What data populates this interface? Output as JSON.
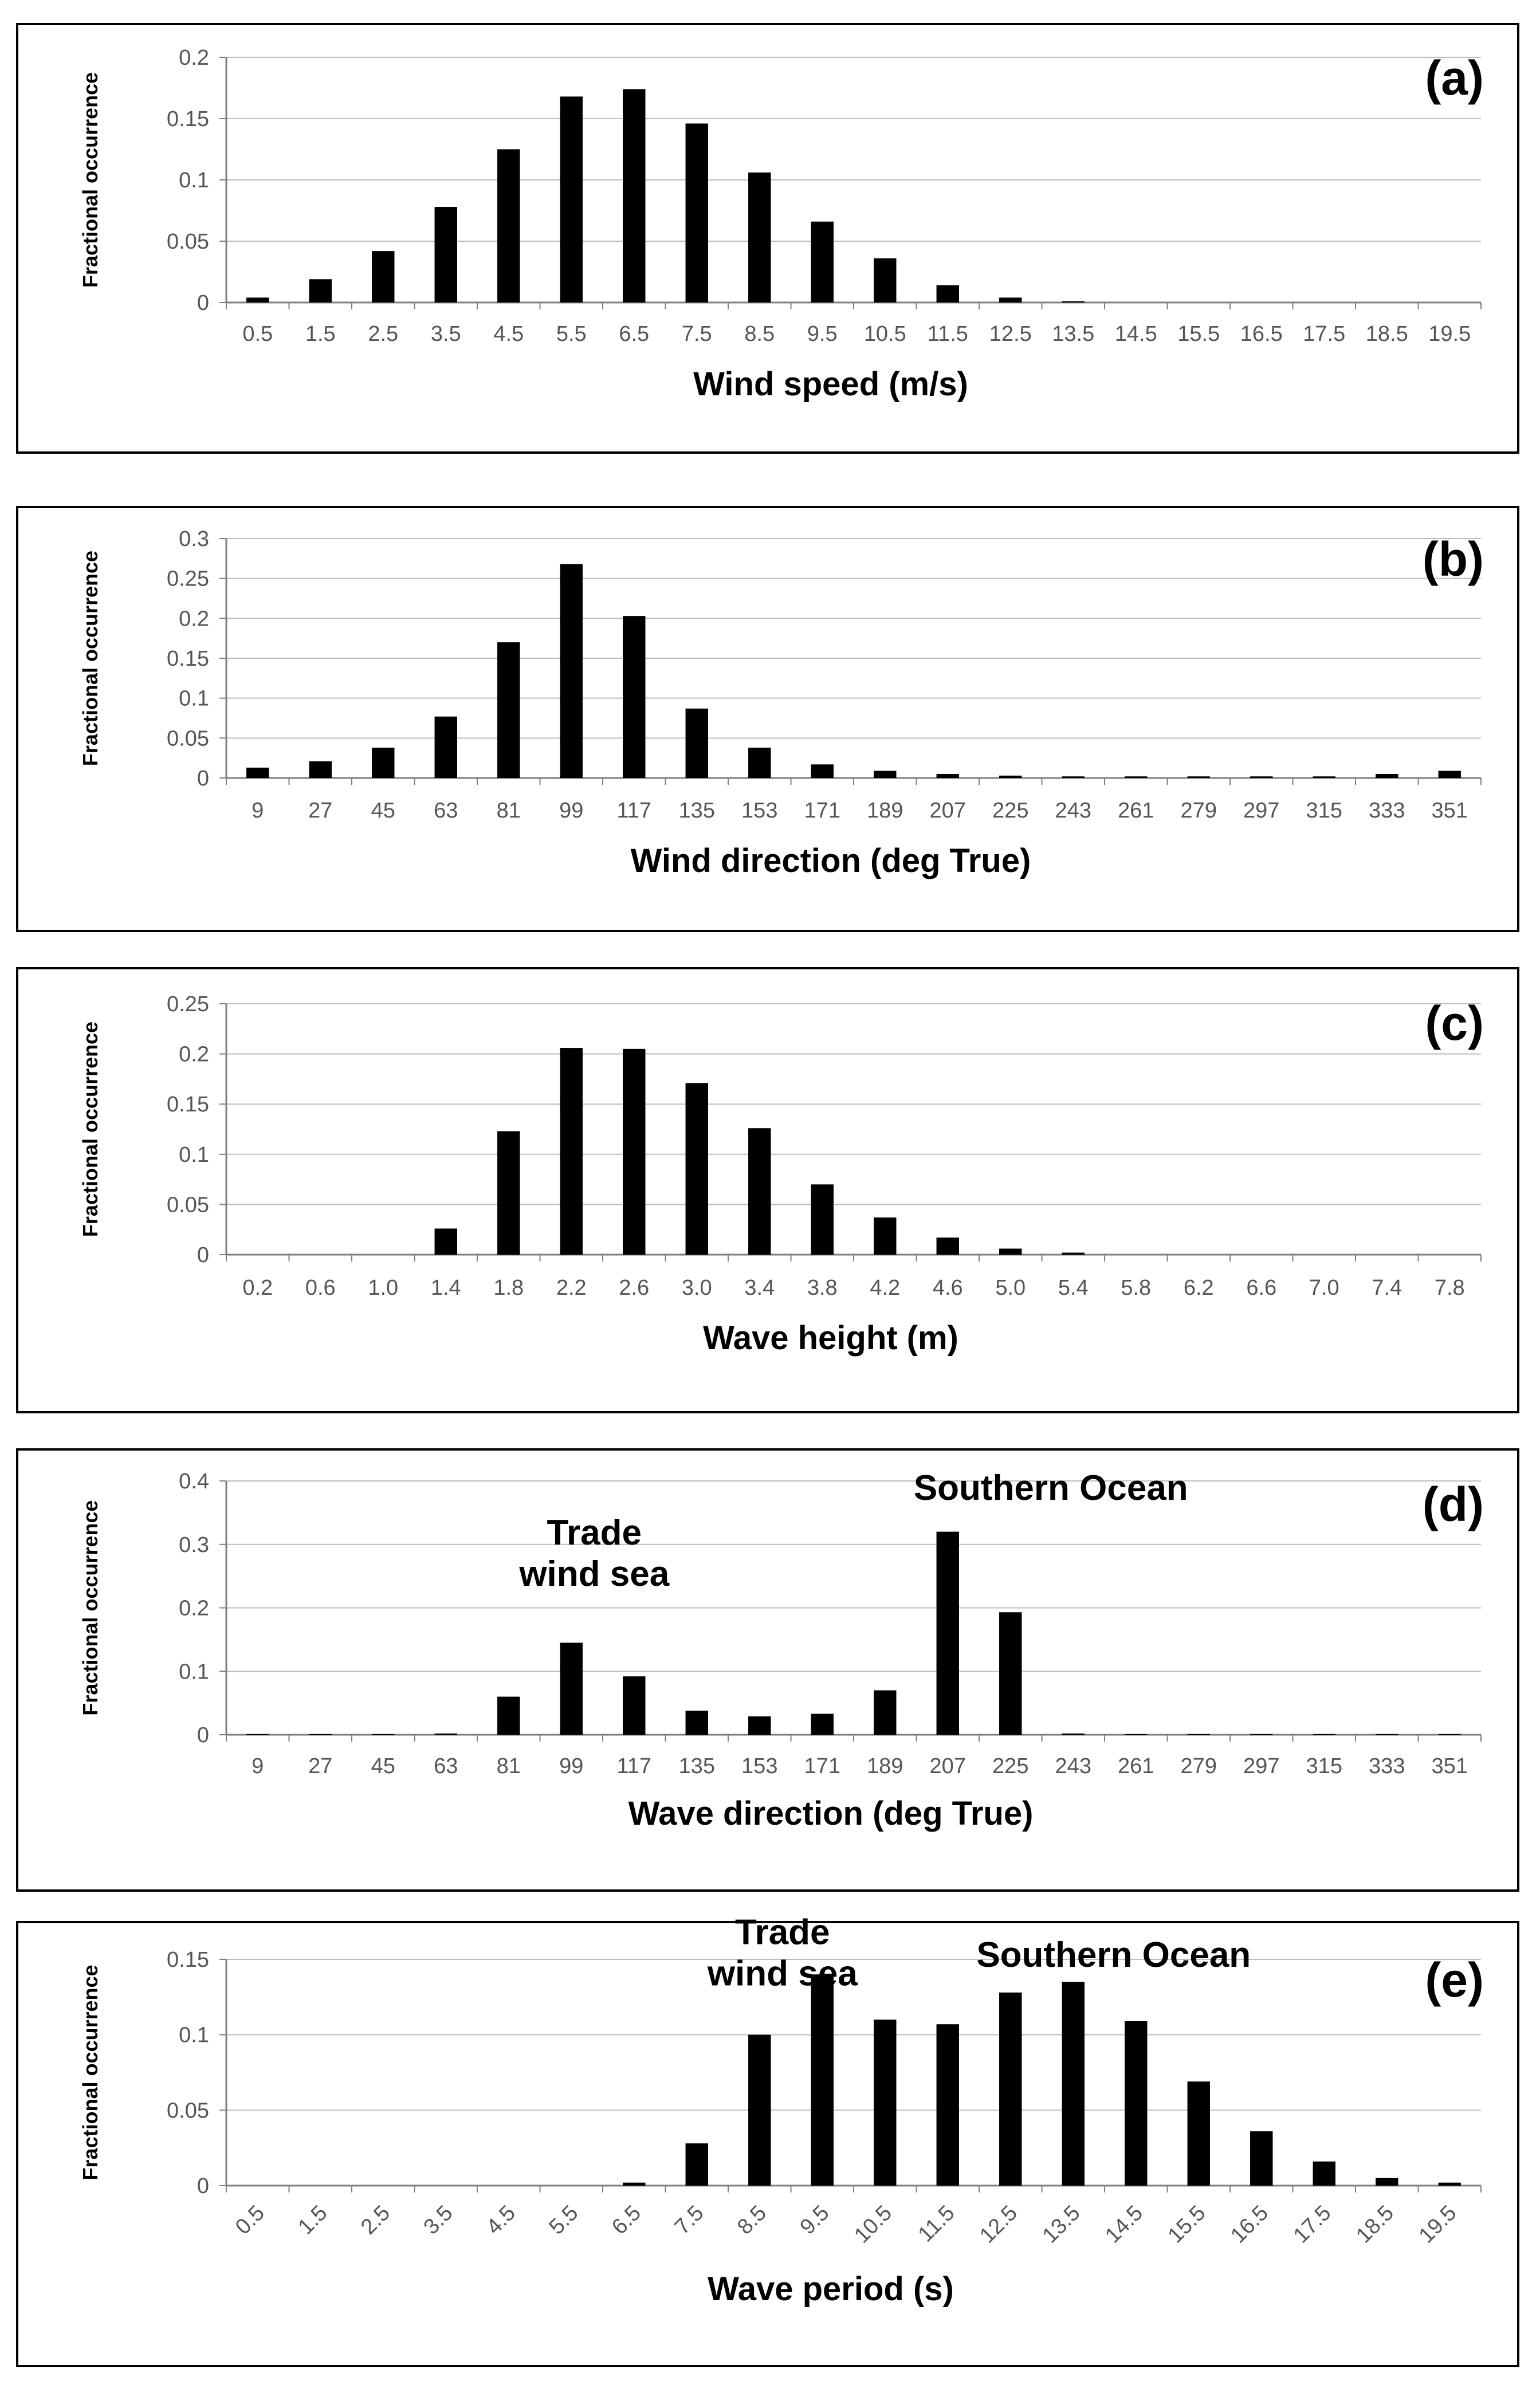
{
  "colors": {
    "bar": "#000000",
    "grid": "#bdbdbd",
    "frame": "#000000",
    "axis": "#7f7f7f",
    "tick_text": "#555555"
  },
  "chart_data": [
    {
      "type": "bar",
      "panel_label": "(a)",
      "xlabel": "Wind speed (m/s)",
      "ylabel": "Fractional occurrence",
      "ylim": [
        0,
        0.2
      ],
      "yticks": [
        "0",
        "0.05",
        "0.1",
        "0.15",
        "0.2"
      ],
      "categories": [
        "0.5",
        "1.5",
        "2.5",
        "3.5",
        "4.5",
        "5.5",
        "6.5",
        "7.5",
        "8.5",
        "9.5",
        "10.5",
        "11.5",
        "12.5",
        "13.5",
        "14.5",
        "15.5",
        "16.5",
        "17.5",
        "18.5",
        "19.5"
      ],
      "values": [
        0.004,
        0.019,
        0.042,
        0.078,
        0.125,
        0.168,
        0.174,
        0.146,
        0.106,
        0.066,
        0.036,
        0.014,
        0.004,
        0.001,
        0,
        0,
        0,
        0,
        0,
        0
      ],
      "annotations": []
    },
    {
      "type": "bar",
      "panel_label": "(b)",
      "xlabel": "Wind direction (deg True)",
      "ylabel": "Fractional occurrence",
      "ylim": [
        0,
        0.3
      ],
      "yticks": [
        "0",
        "0.05",
        "0.1",
        "0.15",
        "0.2",
        "0.25",
        "0.3"
      ],
      "categories": [
        "9",
        "27",
        "45",
        "63",
        "81",
        "99",
        "117",
        "135",
        "153",
        "171",
        "189",
        "207",
        "225",
        "243",
        "261",
        "279",
        "297",
        "315",
        "333",
        "351"
      ],
      "values": [
        0.013,
        0.021,
        0.038,
        0.077,
        0.17,
        0.268,
        0.203,
        0.087,
        0.038,
        0.017,
        0.009,
        0.005,
        0.003,
        0.002,
        0.002,
        0.002,
        0.002,
        0.002,
        0.005,
        0.009
      ],
      "annotations": []
    },
    {
      "type": "bar",
      "panel_label": "(c)",
      "xlabel": "Wave height (m)",
      "ylabel": "Fractional occurrence",
      "ylim": [
        0,
        0.25
      ],
      "yticks": [
        "0",
        "0.05",
        "0.1",
        "0.15",
        "0.2",
        "0.25"
      ],
      "categories": [
        "0.2",
        "0.6",
        "1.0",
        "1.4",
        "1.8",
        "2.2",
        "2.6",
        "3.0",
        "3.4",
        "3.8",
        "4.2",
        "4.6",
        "5.0",
        "5.4",
        "5.8",
        "6.2",
        "6.6",
        "7.0",
        "7.4",
        "7.8"
      ],
      "values": [
        0,
        0,
        0,
        0.026,
        0.123,
        0.206,
        0.205,
        0.171,
        0.126,
        0.07,
        0.037,
        0.017,
        0.006,
        0.002,
        0,
        0,
        0,
        0,
        0,
        0
      ],
      "annotations": []
    },
    {
      "type": "bar",
      "panel_label": "(d)",
      "xlabel": "Wave direction (deg True)",
      "ylabel": "Fractional occurrence",
      "ylim": [
        0,
        0.4
      ],
      "yticks": [
        "0",
        "0.1",
        "0.2",
        "0.3",
        "0.4"
      ],
      "categories": [
        "9",
        "27",
        "45",
        "63",
        "81",
        "99",
        "117",
        "135",
        "153",
        "171",
        "189",
        "207",
        "225",
        "243",
        "261",
        "279",
        "297",
        "315",
        "333",
        "351"
      ],
      "values": [
        0.001,
        0.001,
        0.001,
        0.002,
        0.06,
        0.145,
        0.092,
        0.038,
        0.029,
        0.033,
        0.07,
        0.32,
        0.193,
        0.002,
        0.001,
        0.001,
        0.001,
        0.001,
        0.001,
        0.001
      ],
      "annotations": [
        {
          "lines": [
            "Trade",
            "wind sea"
          ],
          "near_category": 5,
          "at_value": 0.3
        },
        {
          "lines": [
            "Southern Ocean"
          ],
          "near_category": 11,
          "at_value": 0.37
        }
      ]
    },
    {
      "type": "bar",
      "panel_label": "(e)",
      "xlabel": "Wave period (s)",
      "ylabel": "Fractional occurrence",
      "ylim": [
        0,
        0.15
      ],
      "yticks": [
        "0",
        "0.05",
        "0.1",
        "0.15"
      ],
      "categories": [
        "0.5",
        "1.5",
        "2.5",
        "3.5",
        "4.5",
        "5.5",
        "6.5",
        "7.5",
        "8.5",
        "9.5",
        "10.5",
        "11.5",
        "12.5",
        "13.5",
        "14.5",
        "15.5",
        "16.5",
        "17.5",
        "18.5",
        "19.5"
      ],
      "values": [
        0,
        0,
        0,
        0,
        0,
        0,
        0.002,
        0.028,
        0.1,
        0.14,
        0.11,
        0.107,
        0.128,
        0.135,
        0.109,
        0.069,
        0.036,
        0.016,
        0.005,
        0.002
      ],
      "rotated_ticks": true,
      "annotations": [
        {
          "lines": [
            "Trade",
            "wind sea"
          ],
          "near_category": 8,
          "at_value": 0.16
        },
        {
          "lines": [
            "Southern Ocean"
          ],
          "near_category": 12,
          "at_value": 0.145
        }
      ]
    }
  ]
}
